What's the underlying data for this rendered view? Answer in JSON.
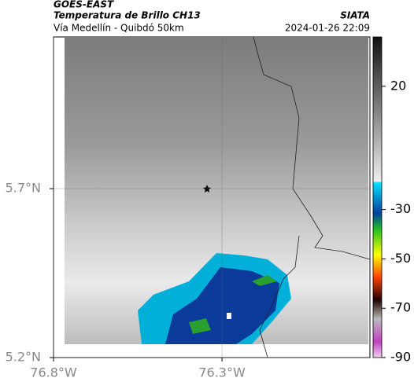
{
  "header": {
    "source": "GOES-EAST",
    "title": "Temperatura de Brillo CH13",
    "brand": "SIATA",
    "region": "Vía Medellín - Quibdó 50km",
    "timestamp": "2024-01-26 22:09"
  },
  "map": {
    "xlim": [
      -76.8,
      -75.861
    ],
    "ylim": [
      5.2,
      6.149
    ],
    "xticks": [
      {
        "value": -76.8,
        "label": "76.8°W"
      },
      {
        "value": -76.3,
        "label": "76.3°W"
      }
    ],
    "yticks": [
      {
        "value": 5.2,
        "label": "5.2°N"
      },
      {
        "value": 5.7,
        "label": "5.7°N"
      }
    ],
    "grid": true
  },
  "colorbar": {
    "clim": [
      -90,
      40
    ],
    "ticks": [
      20,
      -30,
      -50,
      -70,
      -90
    ]
  }
}
